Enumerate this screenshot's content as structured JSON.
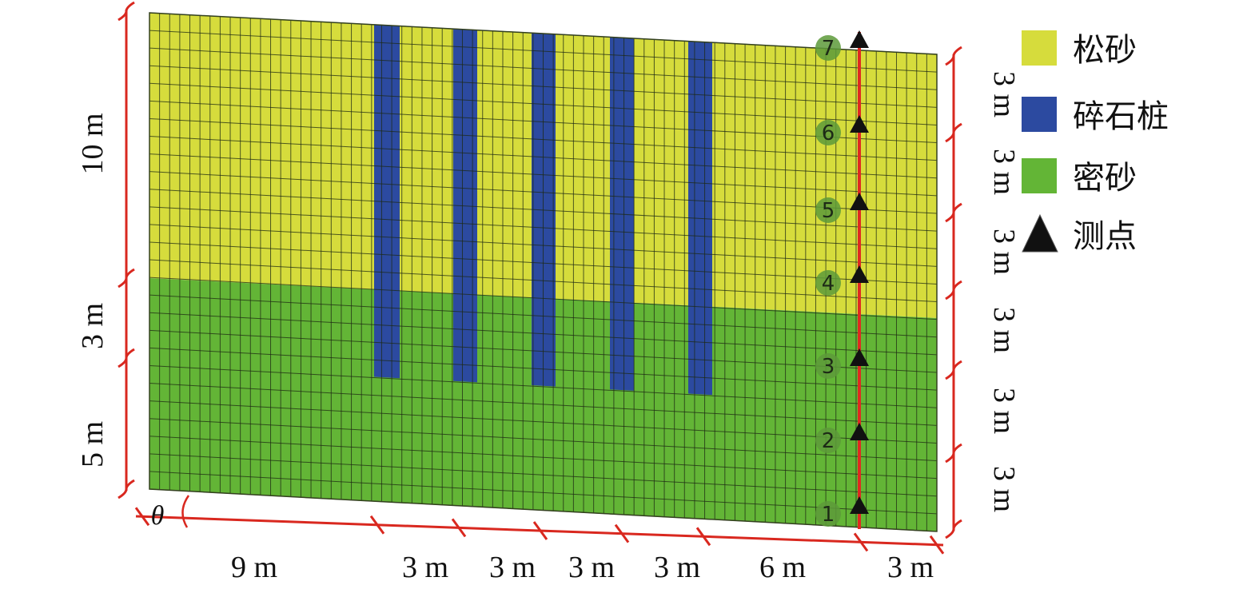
{
  "legend": [
    {
      "key": "loose_sand",
      "label": "松砂",
      "color": "#d6dc3c"
    },
    {
      "key": "gravel_pile",
      "label": "碎石桩",
      "color": "#2c4aa0"
    },
    {
      "key": "dense_sand",
      "label": "密砂",
      "color": "#63b536"
    },
    {
      "key": "measure_point",
      "label": "测点",
      "symbol": "triangle-icon",
      "color": "#111111"
    }
  ],
  "left_dims": [
    "10 m",
    "3 m",
    "5 m"
  ],
  "right_dims": [
    "3 m",
    "3 m",
    "3 m",
    "3 m",
    "3 m",
    "3 m"
  ],
  "bottom_dims": [
    "9 m",
    "3 m",
    "3 m",
    "3 m",
    "3 m",
    "6 m",
    "3 m"
  ],
  "angle_label": "θ",
  "measure_points": [
    "1",
    "2",
    "3",
    "4",
    "5",
    "6",
    "7"
  ],
  "colors": {
    "loose_sand": "#d6dc3c",
    "dense_sand": "#63b536",
    "gravel_pile": "#2c4aa0",
    "mesh_line": "#1e2a14",
    "dimension_line": "#d9281f",
    "measure_line": "#e02a20",
    "point_circle": "#5d9a3a"
  }
}
